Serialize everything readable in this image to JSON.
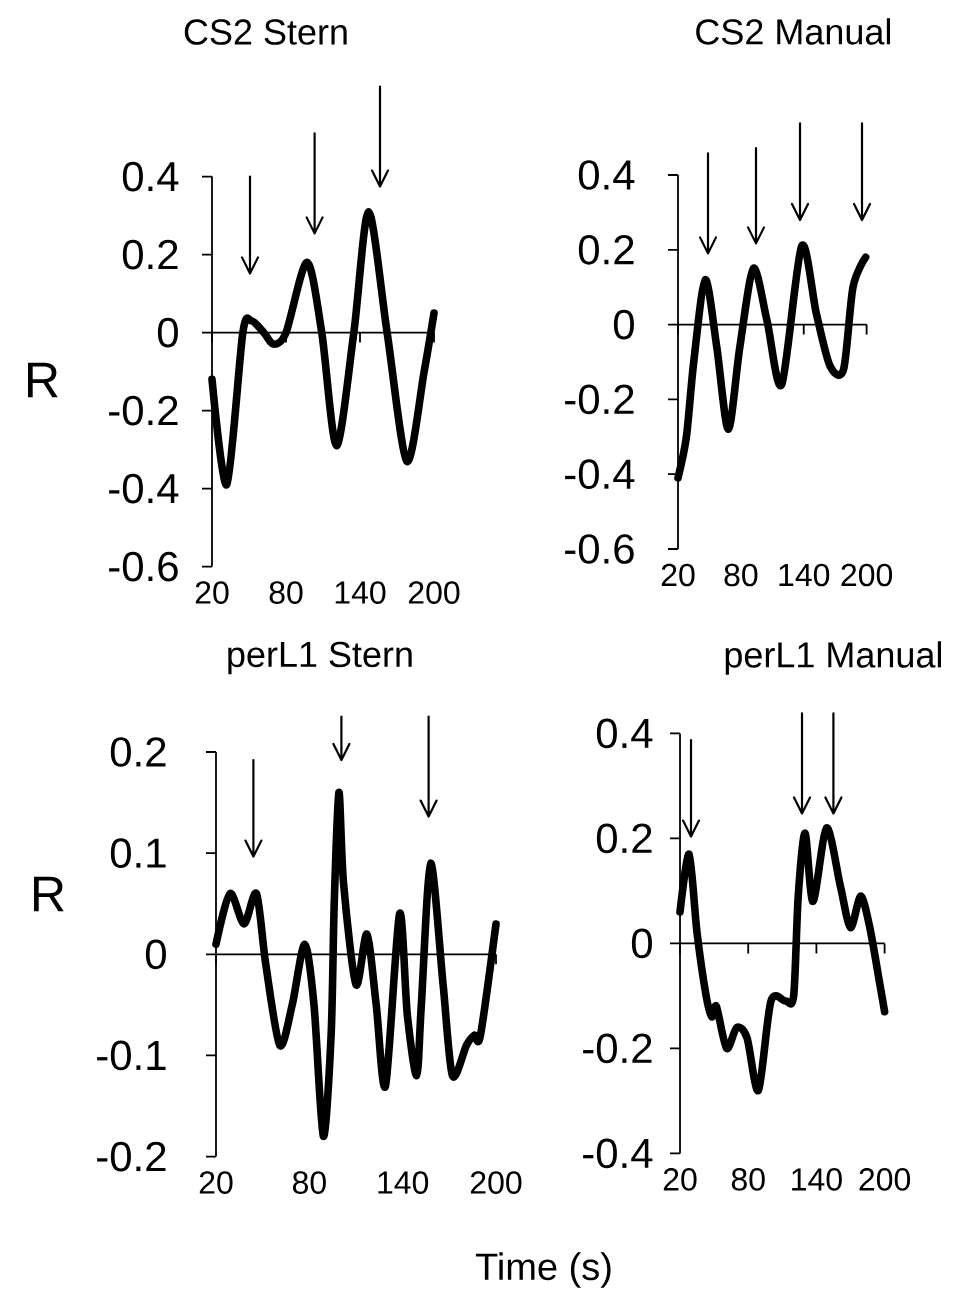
{
  "chart_data": [
    {
      "type": "line",
      "title": "CS2 Stern",
      "ylabel": "R",
      "x": [
        20,
        32,
        45,
        52,
        62,
        70,
        80,
        97,
        109,
        121,
        135,
        147,
        162,
        178,
        192,
        200
      ],
      "values": [
        -0.12,
        -0.39,
        0,
        0.03,
        0,
        -0.03,
        0,
        0.18,
        0,
        -0.29,
        0,
        0.31,
        0,
        -0.33,
        -0.1,
        0.05
      ],
      "color": "#000000",
      "xlim": [
        20,
        200
      ],
      "ylim": [
        -0.6,
        0.4
      ],
      "xticks": [
        20,
        80,
        140,
        200
      ],
      "yticks": [
        -0.6,
        -0.4,
        -0.2,
        0,
        0.2,
        0.4
      ],
      "marker": "none",
      "line_style": "solid"
    },
    {
      "type": "line",
      "title": "CS2 Manual",
      "x": [
        20,
        28,
        35,
        46,
        57,
        68,
        79,
        92,
        105,
        119,
        138,
        152,
        165,
        178,
        187,
        199
      ],
      "values": [
        -0.41,
        -0.3,
        -0.1,
        0.12,
        -0.06,
        -0.28,
        -0.06,
        0.15,
        0.01,
        -0.16,
        0.21,
        0.03,
        -0.11,
        -0.12,
        0.1,
        0.18
      ],
      "color": "#000000",
      "xlim": [
        20,
        200
      ],
      "ylim": [
        -0.6,
        0.4
      ],
      "xticks": [
        20,
        80,
        140,
        200
      ],
      "yticks": [
        -0.6,
        -0.4,
        -0.2,
        0,
        0.2,
        0.4
      ],
      "marker": "none",
      "line_style": "solid"
    },
    {
      "type": "line",
      "title": "perL1 Stern",
      "ylabel": "R",
      "xlabel": "Time (s)",
      "x": [
        20,
        29,
        38,
        46,
        52,
        61,
        69,
        77,
        83,
        89,
        94,
        96,
        99,
        102,
        110,
        117,
        123,
        129,
        138,
        143,
        149,
        152,
        158,
        166,
        172,
        181,
        186,
        190,
        200
      ],
      "values": [
        0.01,
        0.06,
        0.03,
        0.06,
        -0.01,
        -0.09,
        -0.05,
        0.01,
        -0.05,
        -0.18,
        -0.08,
        0.05,
        0.16,
        0.07,
        -0.03,
        0.02,
        -0.05,
        -0.13,
        0.04,
        -0.06,
        -0.12,
        -0.05,
        0.09,
        -0.03,
        -0.12,
        -0.09,
        -0.08,
        -0.08,
        0.03
      ],
      "color": "#000000",
      "xlim": [
        20,
        200
      ],
      "ylim": [
        -0.2,
        0.2
      ],
      "xticks": [
        20,
        80,
        140,
        200
      ],
      "yticks": [
        -0.2,
        -0.1,
        0,
        0.1,
        0.2
      ],
      "marker": "none",
      "line_style": "solid"
    },
    {
      "type": "line",
      "title": "perL1 Manual",
      "x": [
        20,
        28,
        35,
        43,
        48,
        52,
        61,
        70,
        79,
        89,
        100,
        113,
        120,
        124,
        130,
        137,
        149,
        161,
        170,
        179,
        187,
        196,
        200
      ],
      "values": [
        0.06,
        0.17,
        0.02,
        -0.1,
        -0.14,
        -0.12,
        -0.2,
        -0.16,
        -0.18,
        -0.28,
        -0.11,
        -0.11,
        -0.1,
        0.09,
        0.21,
        0.08,
        0.22,
        0.11,
        0.03,
        0.09,
        0.03,
        -0.08,
        -0.13
      ],
      "color": "#000000",
      "xlim": [
        20,
        200
      ],
      "ylim": [
        -0.4,
        0.4
      ],
      "xticks": [
        20,
        80,
        140,
        200
      ],
      "yticks": [
        -0.4,
        -0.2,
        0,
        0.2,
        0.4
      ],
      "marker": "none",
      "line_style": "solid"
    }
  ]
}
